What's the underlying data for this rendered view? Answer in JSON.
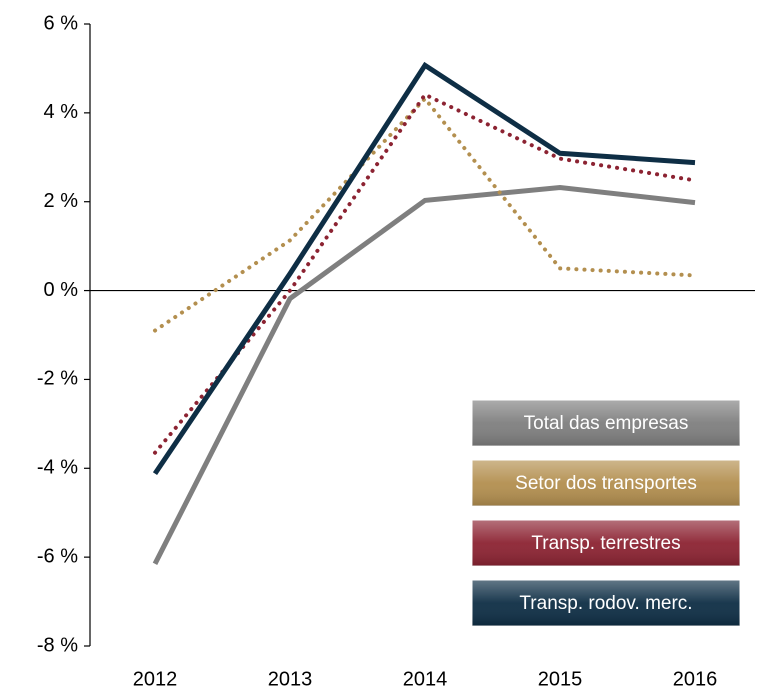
{
  "chart_data": {
    "type": "line",
    "categories": [
      "2012",
      "2013",
      "2014",
      "2015",
      "2016"
    ],
    "series": [
      {
        "name": "Total das empresas",
        "color": "#7f7f7f",
        "style": "solid",
        "values": [
          -6.15,
          -0.18,
          2.03,
          2.32,
          1.98
        ]
      },
      {
        "name": "Setor dos transportes",
        "color": "#b38f4f",
        "style": "dotted",
        "values": [
          -0.9,
          1.13,
          4.32,
          0.5,
          0.34
        ]
      },
      {
        "name": "Transp. terrestres",
        "color": "#8c2332",
        "style": "dotted",
        "values": [
          -3.65,
          0.0,
          4.41,
          2.97,
          2.48
        ]
      },
      {
        "name": "Transp. rodov. merc.",
        "color": "#0e2e45",
        "style": "solid",
        "values": [
          -4.12,
          0.38,
          5.07,
          3.09,
          2.88
        ]
      }
    ],
    "ylim": [
      -8,
      6
    ],
    "yticks": [
      {
        "value": -8,
        "label": "-8 %"
      },
      {
        "value": -6,
        "label": "-6 %"
      },
      {
        "value": -4,
        "label": "-4 %"
      },
      {
        "value": -2,
        "label": "-2 %"
      },
      {
        "value": 0,
        "label": "0 %"
      },
      {
        "value": 2,
        "label": "2 %"
      },
      {
        "value": 4,
        "label": "4 %"
      },
      {
        "value": 6,
        "label": "6 %"
      }
    ],
    "grid": false,
    "legend": "bottom-right"
  }
}
